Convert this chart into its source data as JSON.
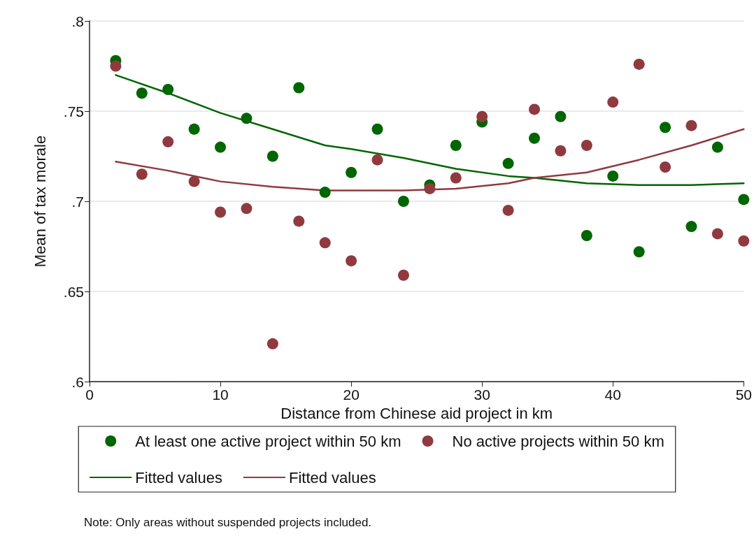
{
  "chart_data": {
    "type": "scatter",
    "xlabel": "Distance from Chinese aid project in km",
    "ylabel": "Mean of tax morale",
    "annotations": [
      "Note: Only areas without suspended projects included."
    ],
    "x": [
      2,
      4,
      6,
      8,
      10,
      12,
      14,
      16,
      18,
      20,
      22,
      24,
      26,
      28,
      30,
      32,
      34,
      36,
      38,
      40,
      42,
      44,
      46,
      48,
      50
    ],
    "series": [
      {
        "name": "At least one active project within 50 km",
        "marker": "circle",
        "color": "#006600",
        "values": [
          0.778,
          0.76,
          0.762,
          0.74,
          0.73,
          0.746,
          0.725,
          0.763,
          0.705,
          0.716,
          0.74,
          0.7,
          0.709,
          0.731,
          0.744,
          0.721,
          0.735,
          0.747,
          0.681,
          0.714,
          0.672,
          0.741,
          0.686,
          0.73,
          0.701
        ]
      },
      {
        "name": "No active projects within 50 km",
        "marker": "circle",
        "color": "#903a40",
        "values": [
          0.775,
          0.715,
          0.733,
          0.711,
          0.694,
          0.696,
          0.621,
          0.689,
          0.677,
          0.667,
          0.723,
          0.659,
          0.707,
          0.713,
          0.747,
          0.695,
          0.751,
          0.728,
          0.731,
          0.755,
          0.776,
          0.719,
          0.742,
          0.682,
          0.678
        ]
      },
      {
        "name": "Fitted values",
        "type": "line",
        "marker": "none",
        "color": "#006600",
        "x": [
          2,
          6,
          10,
          14,
          18,
          20,
          24,
          28,
          32,
          34,
          38,
          42,
          46,
          50
        ],
        "values": [
          0.77,
          0.76,
          0.749,
          0.74,
          0.731,
          0.729,
          0.724,
          0.718,
          0.714,
          0.713,
          0.71,
          0.709,
          0.709,
          0.71
        ]
      },
      {
        "name": "Fitted values",
        "type": "line",
        "marker": "none",
        "color": "#903a40",
        "x": [
          2,
          6,
          10,
          14,
          18,
          20,
          24,
          28,
          32,
          34,
          38,
          42,
          46,
          50
        ],
        "values": [
          0.722,
          0.717,
          0.711,
          0.708,
          0.706,
          0.706,
          0.706,
          0.707,
          0.71,
          0.713,
          0.716,
          0.723,
          0.731,
          0.74
        ]
      }
    ],
    "xlim": [
      0,
      50
    ],
    "xticks": [
      0,
      10,
      20,
      30,
      40,
      50
    ],
    "ylim": [
      0.6,
      0.8
    ],
    "yticks": [
      {
        "value": 0.6,
        "label": ".6"
      },
      {
        "value": 0.65,
        "label": ".65"
      },
      {
        "value": 0.7,
        "label": ".7"
      },
      {
        "value": 0.75,
        "label": ".75"
      },
      {
        "value": 0.8,
        "label": ".8"
      }
    ],
    "grid": "y",
    "legend": "bottom"
  }
}
